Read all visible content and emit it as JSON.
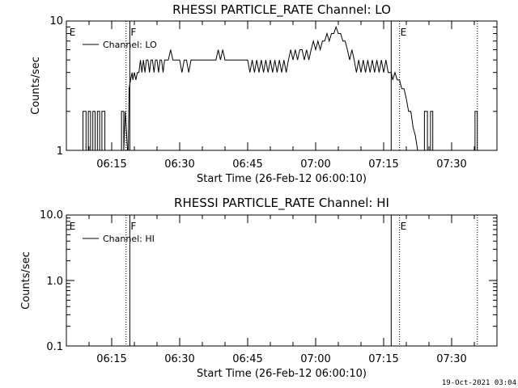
{
  "footer_timestamp": "19-Oct-2021 03:04",
  "chart_data": [
    {
      "type": "line",
      "title": "RHESSI PARTICLE_RATE Channel: LO",
      "xlabel": "Start Time (26-Feb-12 06:00:10)",
      "ylabel": "Counts/sec",
      "yscale": "log",
      "ylim": [
        1,
        10
      ],
      "xlim": [
        "06:05:00",
        "07:40:00"
      ],
      "x_ticks": [
        "06:15",
        "06:30",
        "06:45",
        "07:00",
        "07:15",
        "07:30"
      ],
      "y_ticks": [
        "1",
        "10"
      ],
      "legend": "Channel: LO",
      "legend_position": "top-left",
      "region_labels": [
        {
          "label": "E",
          "time": "06:05:30"
        },
        {
          "label": "F",
          "time": "06:19:00"
        },
        {
          "label": "E",
          "time": "07:18:30"
        }
      ],
      "vertical_lines": [
        {
          "time": "06:18:10",
          "style": "dotted"
        },
        {
          "time": "06:19:00",
          "style": "solid"
        },
        {
          "time": "07:16:40",
          "style": "solid"
        },
        {
          "time": "07:18:30",
          "style": "dotted"
        },
        {
          "time": "07:35:40",
          "style": "dotted"
        }
      ],
      "series": [
        {
          "name": "Channel: LO",
          "points": [
            [
              "06:08:40",
              1
            ],
            [
              "06:08:40",
              2
            ],
            [
              "06:09:20",
              2
            ],
            [
              "06:09:20",
              1
            ],
            [
              "06:09:50",
              1
            ],
            [
              "06:09:50",
              2
            ],
            [
              "06:10:20",
              2
            ],
            [
              "06:10:20",
              1
            ],
            [
              "06:10:50",
              1
            ],
            [
              "06:10:50",
              2
            ],
            [
              "06:11:20",
              2
            ],
            [
              "06:11:20",
              1
            ],
            [
              "06:11:50",
              1
            ],
            [
              "06:11:50",
              2
            ],
            [
              "06:12:20",
              2
            ],
            [
              "06:12:20",
              1
            ],
            [
              "06:12:50",
              1
            ],
            [
              "06:12:50",
              2
            ],
            [
              "06:13:30",
              2
            ],
            [
              "06:13:30",
              1
            ],
            [
              "06:17:10",
              1
            ],
            [
              "06:17:10",
              2
            ],
            [
              "06:17:40",
              2
            ],
            [
              "06:17:40",
              1
            ],
            [
              "06:18:00",
              2
            ],
            [
              "06:18:30",
              1
            ],
            [
              "06:18:40",
              1
            ],
            [
              "06:18:50",
              3
            ],
            [
              "06:19:10",
              3.5
            ],
            [
              "06:19:30",
              4
            ],
            [
              "06:19:40",
              3.5
            ],
            [
              "06:20:00",
              4
            ],
            [
              "06:20:20",
              3.5
            ],
            [
              "06:20:40",
              4
            ],
            [
              "06:21:00",
              4
            ],
            [
              "06:21:20",
              5
            ],
            [
              "06:21:40",
              4
            ],
            [
              "06:22:00",
              5
            ],
            [
              "06:22:20",
              4
            ],
            [
              "06:22:40",
              5
            ],
            [
              "06:23:00",
              5
            ],
            [
              "06:23:20",
              4
            ],
            [
              "06:23:40",
              5
            ],
            [
              "06:24:00",
              5
            ],
            [
              "06:24:20",
              4
            ],
            [
              "06:24:40",
              5
            ],
            [
              "06:25:00",
              5
            ],
            [
              "06:25:20",
              4
            ],
            [
              "06:25:40",
              5
            ],
            [
              "06:26:00",
              5
            ],
            [
              "06:26:20",
              4
            ],
            [
              "06:26:40",
              5
            ],
            [
              "06:27:00",
              5
            ],
            [
              "06:27:30",
              5
            ],
            [
              "06:28:00",
              6
            ],
            [
              "06:28:30",
              5
            ],
            [
              "06:29:00",
              5
            ],
            [
              "06:30:00",
              5
            ],
            [
              "06:30:30",
              4
            ],
            [
              "06:31:00",
              5
            ],
            [
              "06:31:30",
              5
            ],
            [
              "06:32:00",
              4
            ],
            [
              "06:32:30",
              5
            ],
            [
              "06:33:00",
              5
            ],
            [
              "06:34:00",
              5
            ],
            [
              "06:35:00",
              5
            ],
            [
              "06:36:00",
              5
            ],
            [
              "06:37:00",
              5
            ],
            [
              "06:38:00",
              5
            ],
            [
              "06:38:30",
              6
            ],
            [
              "06:39:00",
              5
            ],
            [
              "06:39:30",
              6
            ],
            [
              "06:40:00",
              5
            ],
            [
              "06:41:00",
              5
            ],
            [
              "06:42:00",
              5
            ],
            [
              "06:43:00",
              5
            ],
            [
              "06:44:00",
              5
            ],
            [
              "06:45:00",
              5
            ],
            [
              "06:45:30",
              4
            ],
            [
              "06:46:00",
              5
            ],
            [
              "06:46:30",
              4
            ],
            [
              "06:47:00",
              5
            ],
            [
              "06:47:30",
              4
            ],
            [
              "06:48:00",
              5
            ],
            [
              "06:48:30",
              4
            ],
            [
              "06:49:00",
              5
            ],
            [
              "06:49:30",
              4
            ],
            [
              "06:50:00",
              5
            ],
            [
              "06:50:30",
              4
            ],
            [
              "06:51:00",
              5
            ],
            [
              "06:51:30",
              4
            ],
            [
              "06:52:00",
              5
            ],
            [
              "06:52:30",
              4
            ],
            [
              "06:53:00",
              5
            ],
            [
              "06:53:30",
              4
            ],
            [
              "06:54:00",
              5
            ],
            [
              "06:54:30",
              6
            ],
            [
              "06:55:00",
              5
            ],
            [
              "06:55:30",
              6
            ],
            [
              "06:56:00",
              5
            ],
            [
              "06:56:30",
              6
            ],
            [
              "06:57:00",
              6
            ],
            [
              "06:57:30",
              5
            ],
            [
              "06:58:00",
              6
            ],
            [
              "06:58:30",
              5
            ],
            [
              "06:59:00",
              6
            ],
            [
              "06:59:30",
              7
            ],
            [
              "07:00:00",
              6
            ],
            [
              "07:00:30",
              7
            ],
            [
              "07:01:00",
              6
            ],
            [
              "07:01:30",
              7
            ],
            [
              "07:02:00",
              7
            ],
            [
              "07:02:30",
              8
            ],
            [
              "07:03:00",
              7
            ],
            [
              "07:03:30",
              8
            ],
            [
              "07:04:00",
              8
            ],
            [
              "07:04:30",
              9
            ],
            [
              "07:05:00",
              8
            ],
            [
              "07:05:30",
              8
            ],
            [
              "07:06:00",
              7
            ],
            [
              "07:06:30",
              7
            ],
            [
              "07:07:00",
              6
            ],
            [
              "07:07:30",
              5
            ],
            [
              "07:08:00",
              6
            ],
            [
              "07:08:30",
              5
            ],
            [
              "07:09:00",
              4
            ],
            [
              "07:09:30",
              5
            ],
            [
              "07:10:00",
              4
            ],
            [
              "07:10:30",
              5
            ],
            [
              "07:11:00",
              4
            ],
            [
              "07:11:30",
              5
            ],
            [
              "07:12:00",
              4
            ],
            [
              "07:12:30",
              5
            ],
            [
              "07:13:00",
              4
            ],
            [
              "07:13:30",
              5
            ],
            [
              "07:14:00",
              4
            ],
            [
              "07:14:30",
              5
            ],
            [
              "07:15:00",
              4
            ],
            [
              "07:15:30",
              5
            ],
            [
              "07:16:00",
              4
            ],
            [
              "07:16:40",
              4
            ],
            [
              "07:17:00",
              3.5
            ],
            [
              "07:17:30",
              4
            ],
            [
              "07:18:00",
              3.5
            ],
            [
              "07:18:30",
              3.5
            ],
            [
              "07:19:00",
              3
            ],
            [
              "07:19:30",
              3
            ],
            [
              "07:20:00",
              2.5
            ],
            [
              "07:20:30",
              2
            ],
            [
              "07:21:00",
              2
            ],
            [
              "07:21:30",
              1.5
            ],
            [
              "07:22:00",
              1.3
            ],
            [
              "07:22:30",
              1
            ],
            [
              "07:24:00",
              1
            ],
            [
              "07:24:00",
              2
            ],
            [
              "07:24:40",
              2
            ],
            [
              "07:24:40",
              1
            ],
            [
              "07:25:20",
              1
            ],
            [
              "07:25:20",
              2
            ],
            [
              "07:25:50",
              2
            ],
            [
              "07:25:50",
              1
            ],
            [
              "07:35:10",
              1
            ],
            [
              "07:35:10",
              2
            ],
            [
              "07:35:40",
              2
            ],
            [
              "07:35:40",
              1
            ]
          ]
        }
      ]
    },
    {
      "type": "line",
      "title": "RHESSI PARTICLE_RATE Channel: HI",
      "xlabel": "Start Time (26-Feb-12 06:00:10)",
      "ylabel": "Counts/sec",
      "yscale": "log",
      "ylim": [
        0.1,
        10
      ],
      "xlim": [
        "06:05:00",
        "07:40:00"
      ],
      "x_ticks": [
        "06:15",
        "06:30",
        "06:45",
        "07:00",
        "07:15",
        "07:30"
      ],
      "y_ticks": [
        "0.1",
        "1.0",
        "10.0"
      ],
      "legend": "Channel: HI",
      "legend_position": "top-left",
      "region_labels": [
        {
          "label": "E",
          "time": "06:05:30"
        },
        {
          "label": "F",
          "time": "06:19:00"
        },
        {
          "label": "E",
          "time": "07:18:30"
        }
      ],
      "vertical_lines": [
        {
          "time": "06:18:10",
          "style": "dotted"
        },
        {
          "time": "06:19:00",
          "style": "solid"
        },
        {
          "time": "07:16:40",
          "style": "solid"
        },
        {
          "time": "07:18:30",
          "style": "dotted"
        },
        {
          "time": "07:35:40",
          "style": "dotted"
        }
      ],
      "series": [
        {
          "name": "Channel: HI",
          "points": []
        }
      ]
    }
  ]
}
